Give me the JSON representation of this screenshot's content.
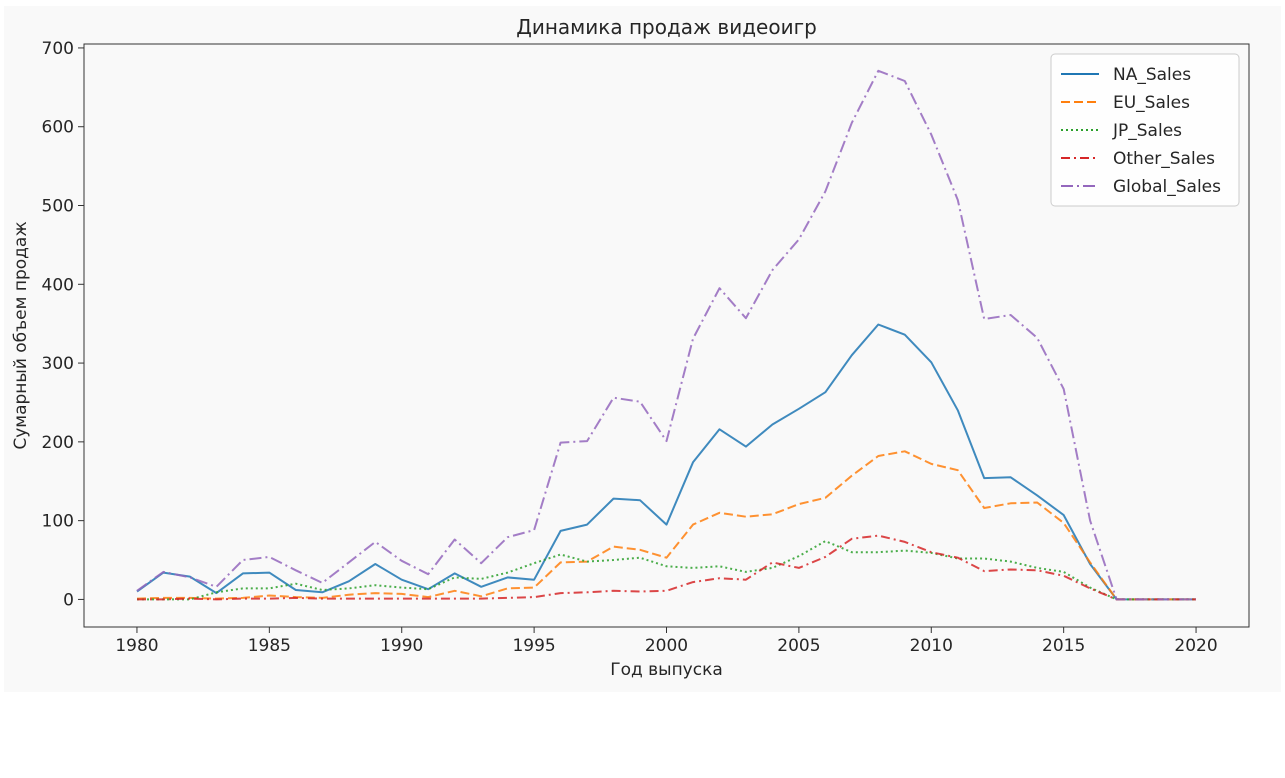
{
  "chart_data": {
    "type": "line",
    "title": "Динамика продаж видеоигр",
    "xlabel": "Год выпуска",
    "ylabel": "Сумарный объем продаж",
    "xlim": [
      1978,
      2022
    ],
    "ylim": [
      -35,
      705
    ],
    "x_ticks": [
      1980,
      1985,
      1990,
      1995,
      2000,
      2005,
      2010,
      2015,
      2020
    ],
    "y_ticks": [
      0,
      100,
      200,
      300,
      400,
      500,
      600,
      700
    ],
    "grid": false,
    "legend_position": "top-right",
    "x": [
      1980,
      1981,
      1982,
      1983,
      1984,
      1985,
      1986,
      1987,
      1988,
      1989,
      1990,
      1991,
      1992,
      1993,
      1994,
      1995,
      1996,
      1997,
      1998,
      1999,
      2000,
      2001,
      2002,
      2003,
      2004,
      2005,
      2006,
      2007,
      2008,
      2009,
      2010,
      2011,
      2012,
      2013,
      2014,
      2015,
      2016,
      2017,
      2018,
      2019,
      2020
    ],
    "series": [
      {
        "name": "NA_Sales",
        "color": "#1f77b4",
        "dash": "solid",
        "values": [
          10,
          34,
          29,
          8,
          33,
          34,
          12,
          9,
          23,
          45,
          25,
          13,
          33,
          16,
          28,
          25,
          87,
          95,
          128,
          126,
          95,
          174,
          216,
          194,
          222,
          242,
          263,
          310,
          349,
          336,
          301,
          240,
          154,
          155,
          132,
          107,
          45,
          0,
          0,
          0,
          0
        ]
      },
      {
        "name": "EU_Sales",
        "color": "#ff7f0e",
        "dash": "dashed",
        "values": [
          1,
          2,
          2,
          1,
          2,
          5,
          3,
          2,
          6,
          8,
          7,
          3,
          11,
          4,
          14,
          15,
          47,
          48,
          67,
          63,
          53,
          95,
          110,
          105,
          108,
          121,
          129,
          157,
          182,
          188,
          172,
          164,
          116,
          122,
          123,
          97,
          47,
          0,
          0,
          0,
          0
        ]
      },
      {
        "name": "JP_Sales",
        "color": "#2ca02c",
        "dash": "dotted",
        "values": [
          0,
          0,
          0,
          9,
          14,
          14,
          20,
          12,
          14,
          18,
          15,
          13,
          28,
          26,
          34,
          46,
          57,
          48,
          50,
          53,
          42,
          40,
          42,
          35,
          40,
          55,
          74,
          60,
          60,
          62,
          59,
          52,
          52,
          48,
          40,
          35,
          15,
          0,
          0,
          0,
          0
        ]
      },
      {
        "name": "Other_Sales",
        "color": "#d62728",
        "dash": "dashdot",
        "values": [
          0,
          0,
          1,
          0,
          1,
          1,
          2,
          1,
          1,
          1,
          1,
          1,
          1,
          1,
          2,
          3,
          8,
          9,
          11,
          10,
          11,
          22,
          27,
          25,
          47,
          40,
          54,
          77,
          81,
          73,
          60,
          53,
          36,
          38,
          37,
          30,
          14,
          0,
          0,
          0,
          0
        ]
      },
      {
        "name": "Global_Sales",
        "color": "#9467bd",
        "dash": "dashdotted",
        "values": [
          11,
          35,
          28,
          16,
          50,
          54,
          37,
          21,
          47,
          73,
          49,
          32,
          76,
          46,
          79,
          88,
          199,
          201,
          256,
          251,
          201,
          331,
          395,
          357,
          418,
          457,
          518,
          605,
          671,
          658,
          590,
          507,
          356,
          361,
          332,
          267,
          100,
          0,
          0,
          0,
          0
        ]
      }
    ]
  }
}
